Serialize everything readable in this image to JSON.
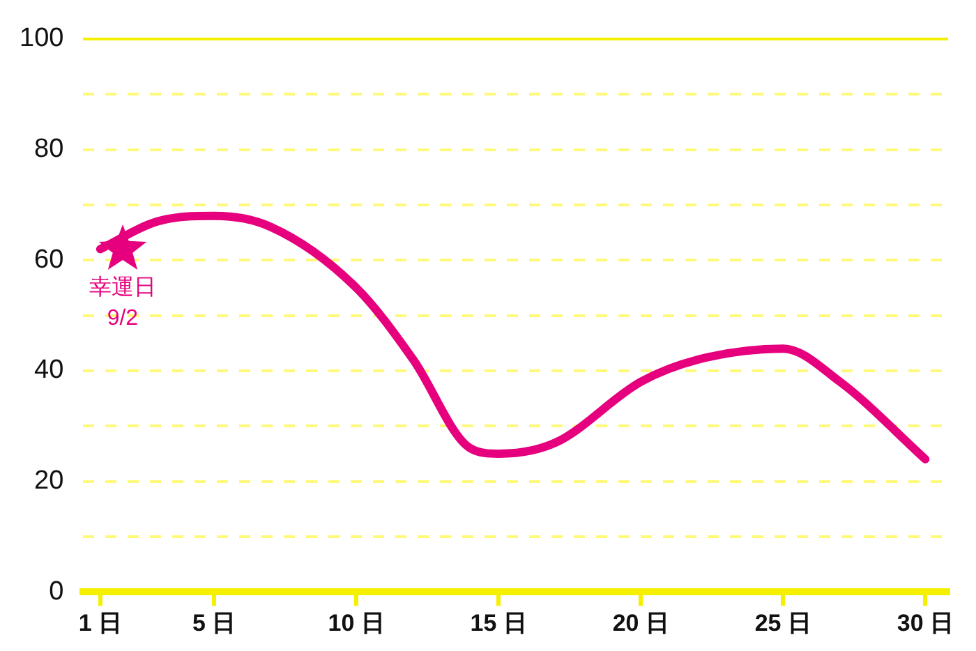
{
  "chart_data": {
    "type": "line",
    "x": [
      1,
      3,
      5,
      7,
      10,
      12,
      14,
      15,
      17,
      20,
      22,
      25,
      27,
      30
    ],
    "series": [
      {
        "color": "#e6007e",
        "values": [
          62,
          67,
          68,
          66,
          55,
          42,
          26,
          25,
          27,
          38,
          42,
          44,
          38,
          24
        ]
      }
    ],
    "xlim": [
      0.4,
      30.8
    ],
    "xticks": [
      {
        "value": 1,
        "label": "1 日"
      },
      {
        "value": 5,
        "label": "5 日"
      },
      {
        "value": 10,
        "label": "10 日"
      },
      {
        "value": 15,
        "label": "15 日"
      },
      {
        "value": 20,
        "label": "20 日"
      },
      {
        "value": 25,
        "label": "25 日"
      },
      {
        "value": 30,
        "label": "30 日"
      }
    ],
    "ylim": [
      0,
      100
    ],
    "yticks": [
      0,
      {
        "value": 10,
        "label": null
      },
      20,
      {
        "value": 30,
        "label": null
      },
      40,
      {
        "value": 50,
        "label": null
      },
      60,
      {
        "value": 70,
        "label": null
      },
      80,
      {
        "value": 90,
        "label": null
      },
      100
    ],
    "grid": "y",
    "legend": false,
    "marker": "none",
    "line_style": "solid",
    "annotations": [
      {
        "text": "幸運日\n9/2",
        "x": 1,
        "y": 62
      }
    ]
  }
}
